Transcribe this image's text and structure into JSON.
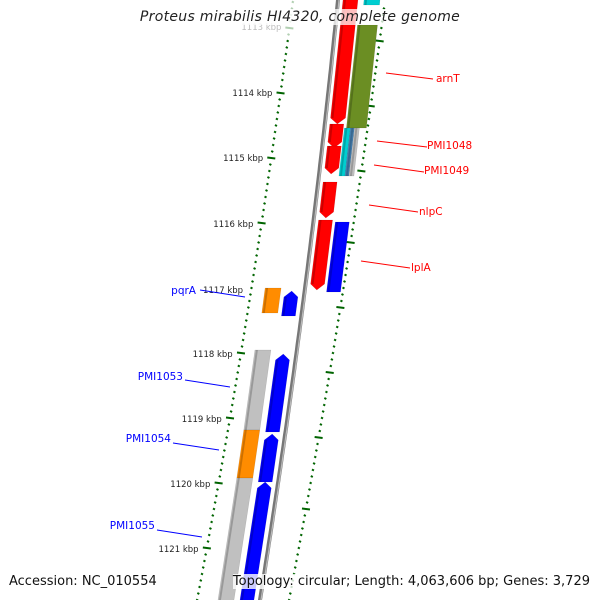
{
  "title": "Proteus mirabilis HI4320, complete genome",
  "footer": {
    "accession": "Accession: NC_010554",
    "summary": "Topology: circular; Length: 4,063,606 bp; Genes: 3,729"
  },
  "ticks": [
    "1113 kbp",
    "1114 kbp",
    "1115 kbp",
    "1116 kbp",
    "1117 kbp",
    "1118 kbp",
    "1119 kbp",
    "1120 kbp",
    "1121 kbp"
  ],
  "forward_labels": [
    "arnT",
    "PMI1048",
    "PMI1049",
    "nlpC",
    "lplA"
  ],
  "reverse_labels": [
    "pqrA",
    "PMI1053",
    "PMI1054",
    "PMI1055"
  ],
  "colors": {
    "forward": "#ff0000",
    "reverse": "#0000ff",
    "olive": "#6b8e23",
    "orange": "#ff8c00",
    "gray": "#c0c0c0",
    "cyan": "#00ced1",
    "tick": "#006400"
  }
}
